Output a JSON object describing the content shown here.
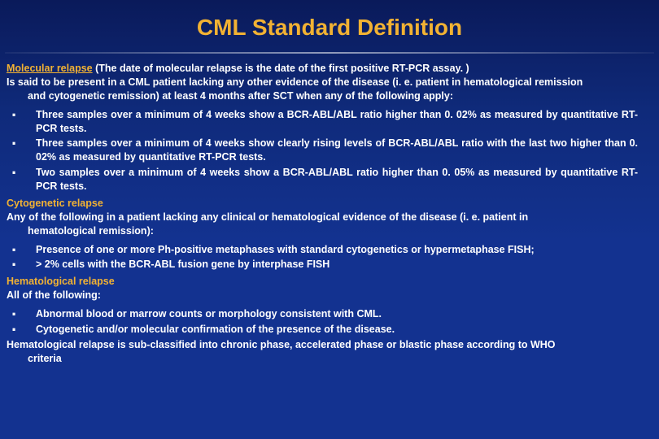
{
  "title": "CML Standard Definition",
  "colors": {
    "title_color": "#f2b233",
    "text_color": "#ffffff",
    "background_top": "#0a1a5a",
    "background_bottom": "#133290",
    "heading_color": "#f2b233"
  },
  "typography": {
    "title_fontsize": 28,
    "body_fontsize": 12.5,
    "font_family": "Arial"
  },
  "molecular": {
    "heading": "Molecular relapse",
    "paren": "(The date of molecular relapse is the date of the first positive RT-PCR assay. )",
    "intro_line1": "Is said to be present in a CML patient lacking any other evidence of the disease (i. e. patient in hematological remission",
    "intro_line2": "and cytogenetic remission) at least 4 months after SCT when any of the following apply:",
    "bullets": [
      "Three samples over a minimum of 4 weeks show a BCR-ABL/ABL ratio higher than 0. 02% as measured by quantitative RT-PCR tests.",
      "Three samples over a minimum of 4 weeks show clearly rising levels of BCR-ABL/ABL ratio with the last two higher than 0. 02% as measured by quantitative RT-PCR tests.",
      "Two samples over a minimum of 4 weeks show a BCR-ABL/ABL ratio higher than 0. 05% as measured by quantitative RT-PCR tests."
    ]
  },
  "cytogenetic": {
    "heading": "Cytogenetic relapse",
    "intro_line1": "Any of the following in a patient lacking any clinical or hematological evidence of the disease (i. e. patient in",
    "intro_line2": "hematological remission):",
    "bullets": [
      "Presence of one or more Ph-positive metaphases with standard cytogenetics or hypermetaphase FISH;",
      "> 2% cells with the BCR-ABL fusion gene by interphase FISH"
    ]
  },
  "hematological": {
    "heading": "Hematological relapse",
    "intro": "All of the following:",
    "bullets": [
      "Abnormal blood or marrow counts or morphology consistent with CML.",
      "Cytogenetic and/or molecular confirmation of the presence of the disease."
    ],
    "footnote_line1": "Hematological relapse is sub-classified into chronic phase, accelerated phase or blastic phase according to WHO",
    "footnote_line2": "criteria"
  }
}
